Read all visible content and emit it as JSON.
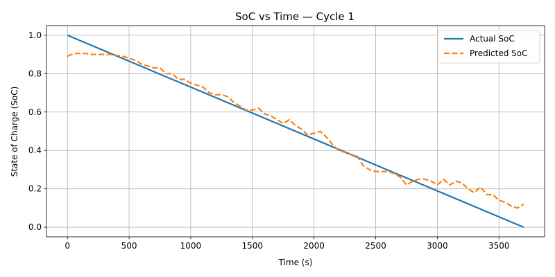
{
  "chart_data": {
    "type": "line",
    "title": "SoC vs Time — Cycle 1",
    "xlabel": "Time (s)",
    "ylabel": "State of Charge (SoC)",
    "xlim": [
      -170,
      3870
    ],
    "ylim": [
      -0.05,
      1.05
    ],
    "xticks": [
      0,
      500,
      1000,
      1500,
      2000,
      2500,
      3000,
      3500
    ],
    "yticks": [
      0.0,
      0.2,
      0.4,
      0.6,
      0.8,
      1.0
    ],
    "xtick_labels": [
      "0",
      "500",
      "1000",
      "1500",
      "2000",
      "2500",
      "3000",
      "3500"
    ],
    "ytick_labels": [
      "0.0",
      "0.2",
      "0.4",
      "0.6",
      "0.8",
      "1.0"
    ],
    "grid": true,
    "legend_position": "top-right",
    "series": [
      {
        "name": "Actual SoC",
        "color": "#1f77b4",
        "style": "solid",
        "x": [
          0,
          3700
        ],
        "y": [
          1.0,
          0.0
        ]
      },
      {
        "name": "Predicted SoC",
        "color": "#ff7f0e",
        "style": "dashed",
        "x": [
          0,
          50,
          100,
          150,
          200,
          250,
          300,
          350,
          400,
          450,
          500,
          550,
          600,
          650,
          700,
          750,
          800,
          850,
          900,
          950,
          1000,
          1050,
          1100,
          1150,
          1200,
          1250,
          1300,
          1350,
          1400,
          1450,
          1500,
          1550,
          1600,
          1650,
          1700,
          1750,
          1800,
          1850,
          1900,
          1950,
          2000,
          2050,
          2100,
          2150,
          2200,
          2250,
          2300,
          2350,
          2400,
          2450,
          2500,
          2550,
          2600,
          2650,
          2700,
          2750,
          2800,
          2850,
          2900,
          2950,
          3000,
          3050,
          3100,
          3150,
          3200,
          3250,
          3300,
          3350,
          3400,
          3450,
          3500,
          3550,
          3600,
          3650,
          3700
        ],
        "y": [
          0.89,
          0.905,
          0.905,
          0.905,
          0.9,
          0.9,
          0.9,
          0.9,
          0.895,
          0.89,
          0.88,
          0.87,
          0.85,
          0.84,
          0.83,
          0.83,
          0.8,
          0.8,
          0.77,
          0.77,
          0.75,
          0.74,
          0.73,
          0.7,
          0.69,
          0.69,
          0.68,
          0.65,
          0.63,
          0.61,
          0.61,
          0.62,
          0.59,
          0.58,
          0.56,
          0.54,
          0.56,
          0.53,
          0.51,
          0.48,
          0.49,
          0.5,
          0.47,
          0.43,
          0.4,
          0.39,
          0.38,
          0.37,
          0.32,
          0.3,
          0.29,
          0.29,
          0.29,
          0.28,
          0.26,
          0.22,
          0.24,
          0.25,
          0.25,
          0.24,
          0.22,
          0.25,
          0.22,
          0.24,
          0.23,
          0.2,
          0.18,
          0.21,
          0.17,
          0.17,
          0.14,
          0.13,
          0.11,
          0.1,
          0.12
        ]
      }
    ]
  }
}
